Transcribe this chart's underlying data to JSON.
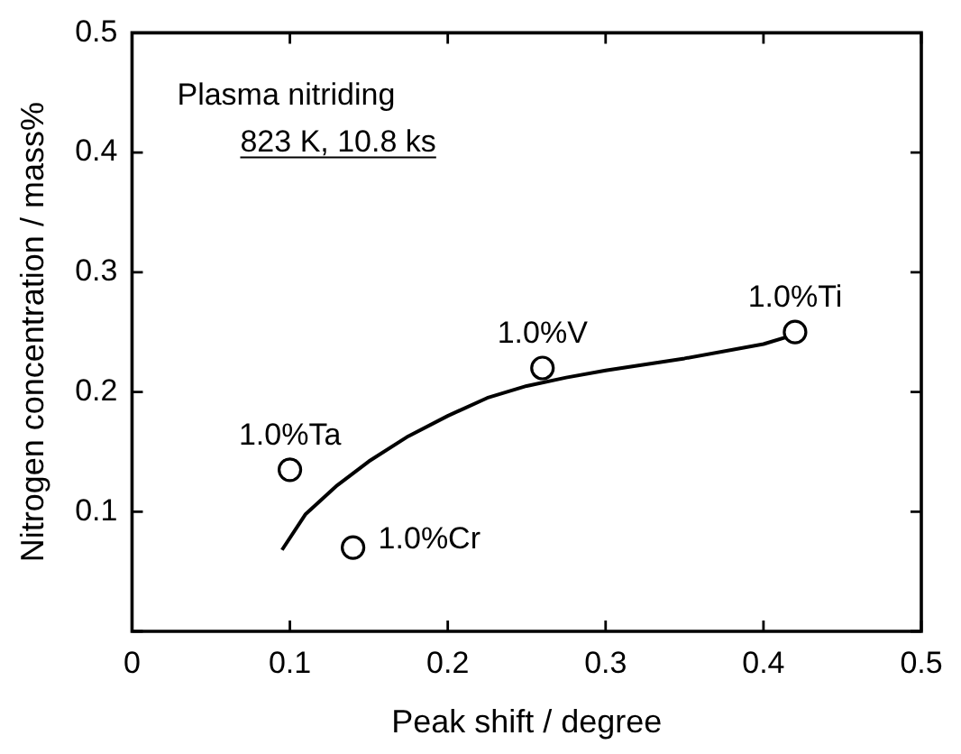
{
  "chart_data": {
    "type": "scatter",
    "xlabel": "Peak shift / degree",
    "ylabel": "Nitrogen concentration / mass%",
    "xlim": [
      0,
      0.5
    ],
    "ylim": [
      0,
      0.5
    ],
    "xticks": [
      0,
      0.1,
      0.2,
      0.3,
      0.4,
      0.5
    ],
    "yticks": [
      {
        "value": 0,
        "label": null
      },
      0.1,
      0.2,
      0.3,
      0.4,
      0.5
    ],
    "grid": false,
    "legend": false,
    "marker": "circle",
    "series": [
      {
        "type": "scatter",
        "color": "#000000",
        "x": [
          0.1,
          0.14,
          0.26,
          0.42
        ],
        "values": [
          0.135,
          0.07,
          0.22,
          0.25
        ]
      },
      {
        "type": "line",
        "color": "#000000",
        "marker": "none",
        "line_style": "solid",
        "x": [
          0.095,
          0.11,
          0.13,
          0.15,
          0.175,
          0.2,
          0.225,
          0.25,
          0.275,
          0.3,
          0.35,
          0.4,
          0.42
        ],
        "values": [
          0.068,
          0.098,
          0.122,
          0.142,
          0.163,
          0.18,
          0.195,
          0.205,
          0.212,
          0.218,
          0.228,
          0.24,
          0.248
        ]
      }
    ],
    "annotations": [
      "Plasma nitriding",
      "823 K, 10.8 ks",
      {
        "text": "1.0%Ta",
        "x": 0.1,
        "y": 0.135
      },
      {
        "text": "1.0%Cr",
        "x": 0.14,
        "y": 0.07
      },
      {
        "text": "1.0%V",
        "x": 0.26,
        "y": 0.22
      },
      {
        "text": "1.0%Ti",
        "x": 0.42,
        "y": 0.25
      }
    ]
  }
}
